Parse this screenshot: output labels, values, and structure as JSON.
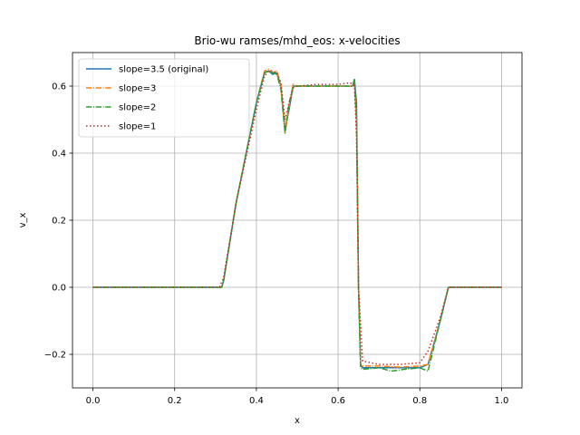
{
  "chart_data": {
    "type": "line",
    "title": "Brio-wu ramses/mhd_eos: x-velocities",
    "xlabel": "x",
    "ylabel": "v_x",
    "xlim": [
      -0.05,
      1.05
    ],
    "ylim": [
      -0.3,
      0.7
    ],
    "xticks": [
      0.0,
      0.2,
      0.4,
      0.6,
      0.8,
      1.0
    ],
    "xtick_labels": [
      "0.0",
      "0.2",
      "0.4",
      "0.6",
      "0.8",
      "1.0"
    ],
    "yticks": [
      -0.2,
      0.0,
      0.2,
      0.4,
      0.6
    ],
    "ytick_labels": [
      "−0.2",
      "0.0",
      "0.2",
      "0.4",
      "0.6"
    ],
    "grid": true,
    "legend_position": "upper-left",
    "series": [
      {
        "name": "slope=3.5 (original)",
        "color": "#1f77b4",
        "style": "solid",
        "x": [
          0.0,
          0.1,
          0.2,
          0.3,
          0.315,
          0.32,
          0.35,
          0.4,
          0.42,
          0.43,
          0.44,
          0.45,
          0.46,
          0.47,
          0.48,
          0.49,
          0.5,
          0.55,
          0.6,
          0.635,
          0.64,
          0.645,
          0.65,
          0.655,
          0.66,
          0.7,
          0.75,
          0.8,
          0.82,
          0.85,
          0.87,
          0.9,
          1.0
        ],
        "y": [
          0.0,
          0.0,
          0.0,
          0.0,
          0.0,
          0.02,
          0.25,
          0.55,
          0.64,
          0.645,
          0.635,
          0.64,
          0.6,
          0.47,
          0.53,
          0.6,
          0.6,
          0.6,
          0.6,
          0.6,
          0.62,
          0.55,
          0.0,
          -0.23,
          -0.24,
          -0.24,
          -0.24,
          -0.24,
          -0.23,
          -0.1,
          0.0,
          0.0,
          0.0
        ]
      },
      {
        "name": "slope=3",
        "color": "#ff7f0e",
        "style": "dashdot",
        "x": [
          0.0,
          0.1,
          0.2,
          0.3,
          0.315,
          0.32,
          0.35,
          0.4,
          0.42,
          0.43,
          0.44,
          0.45,
          0.46,
          0.47,
          0.48,
          0.49,
          0.5,
          0.55,
          0.6,
          0.635,
          0.64,
          0.645,
          0.65,
          0.655,
          0.66,
          0.7,
          0.75,
          0.8,
          0.82,
          0.85,
          0.87,
          0.9,
          1.0
        ],
        "y": [
          0.0,
          0.0,
          0.0,
          0.0,
          0.0,
          0.02,
          0.25,
          0.55,
          0.645,
          0.65,
          0.64,
          0.645,
          0.6,
          0.46,
          0.54,
          0.605,
          0.6,
          0.6,
          0.6,
          0.6,
          0.61,
          0.5,
          0.0,
          -0.23,
          -0.235,
          -0.235,
          -0.238,
          -0.235,
          -0.23,
          -0.1,
          0.0,
          0.0,
          0.0
        ]
      },
      {
        "name": "slope=2",
        "color": "#2ca02c",
        "style": "dashdot",
        "x": [
          0.0,
          0.1,
          0.2,
          0.3,
          0.315,
          0.32,
          0.35,
          0.4,
          0.42,
          0.43,
          0.44,
          0.45,
          0.46,
          0.47,
          0.48,
          0.49,
          0.5,
          0.55,
          0.6,
          0.635,
          0.64,
          0.645,
          0.65,
          0.655,
          0.66,
          0.7,
          0.73,
          0.76,
          0.8,
          0.82,
          0.85,
          0.87,
          0.9,
          1.0
        ],
        "y": [
          0.0,
          0.0,
          0.0,
          0.0,
          0.0,
          0.02,
          0.25,
          0.55,
          0.64,
          0.645,
          0.64,
          0.635,
          0.59,
          0.46,
          0.55,
          0.6,
          0.6,
          0.6,
          0.6,
          0.6,
          0.62,
          0.5,
          0.0,
          -0.24,
          -0.245,
          -0.24,
          -0.25,
          -0.245,
          -0.24,
          -0.25,
          -0.1,
          0.0,
          0.0,
          0.0
        ]
      },
      {
        "name": "slope=1",
        "color": "#d62728",
        "style": "dotted",
        "x": [
          0.0,
          0.1,
          0.2,
          0.3,
          0.31,
          0.32,
          0.35,
          0.4,
          0.42,
          0.43,
          0.44,
          0.45,
          0.46,
          0.47,
          0.48,
          0.49,
          0.5,
          0.55,
          0.6,
          0.63,
          0.64,
          0.645,
          0.65,
          0.66,
          0.7,
          0.75,
          0.8,
          0.82,
          0.85,
          0.87,
          0.9,
          1.0
        ],
        "y": [
          0.0,
          0.0,
          0.0,
          0.0,
          0.0,
          0.03,
          0.25,
          0.53,
          0.63,
          0.645,
          0.645,
          0.64,
          0.61,
          0.5,
          0.55,
          0.595,
          0.6,
          0.605,
          0.605,
          0.61,
          0.6,
          0.45,
          0.0,
          -0.22,
          -0.23,
          -0.23,
          -0.225,
          -0.19,
          -0.09,
          0.0,
          0.0,
          0.0
        ]
      }
    ]
  }
}
